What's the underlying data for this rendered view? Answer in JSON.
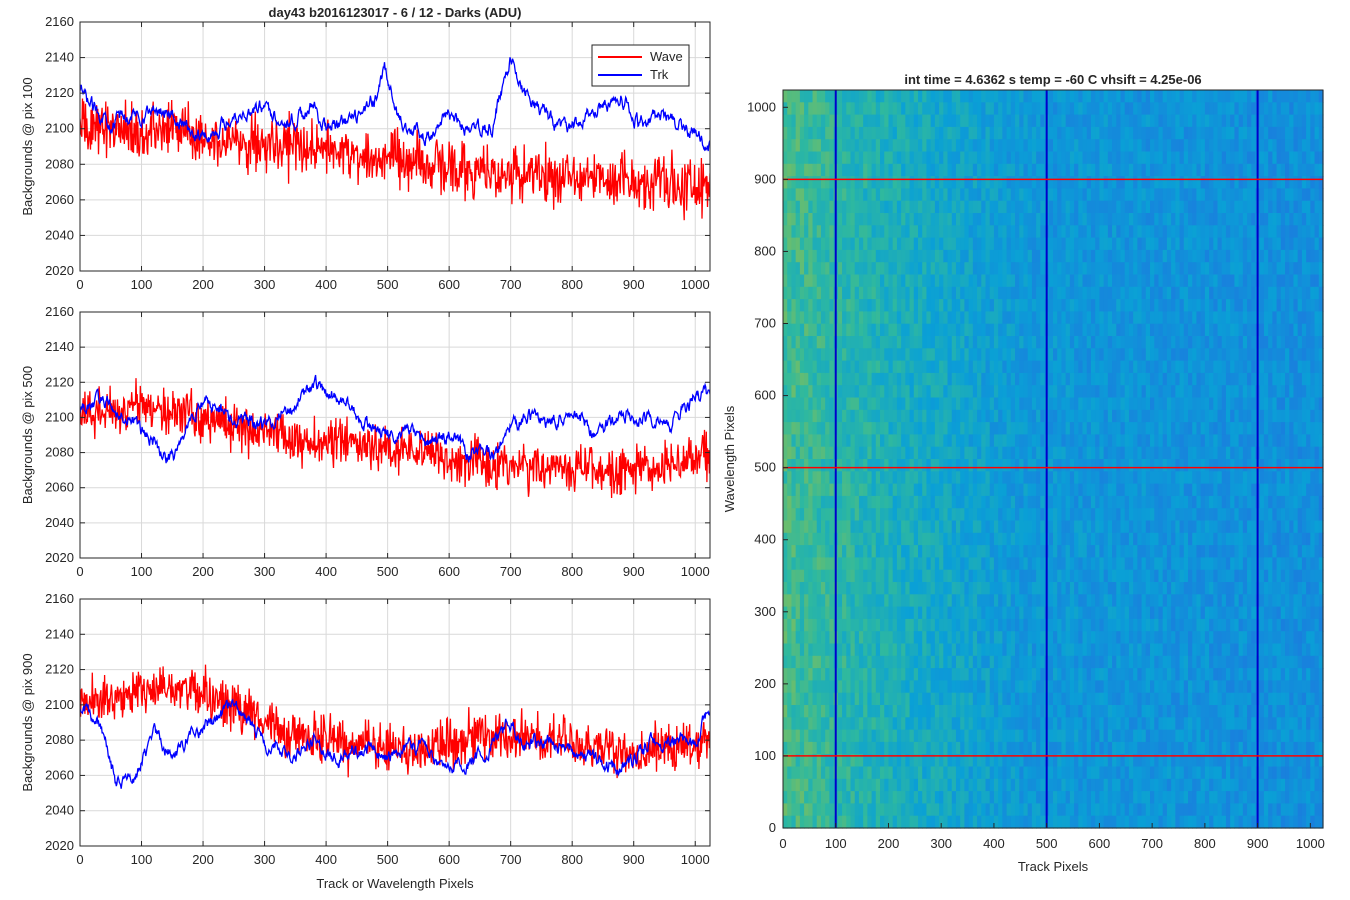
{
  "figure": {
    "suptitle": "day43 b2016123017 - 6 / 12 - Darks (ADU)",
    "colors": {
      "wave": "#ff0000",
      "trk": "#0000ff",
      "axis": "#262626",
      "grid": "#d9d9d9",
      "marker_h": "#ff0000",
      "marker_v": "#0000cc"
    }
  },
  "chart_data": [
    {
      "type": "line",
      "panel": "top-left",
      "title": "day43 b2016123017 - 6 / 12 - Darks (ADU)",
      "xlabel": "",
      "ylabel": "Backgrounds @ pix 100",
      "xlim": [
        0,
        1024
      ],
      "ylim": [
        2020,
        2160
      ],
      "xticks": [
        0,
        100,
        200,
        300,
        400,
        500,
        600,
        700,
        800,
        900,
        1000
      ],
      "yticks": [
        2020,
        2040,
        2060,
        2080,
        2100,
        2120,
        2140,
        2160
      ],
      "grid": true,
      "legend": "top-right",
      "series": [
        {
          "name": "Wave",
          "color": "#ff0000",
          "noise": 17,
          "x": [
            0,
            50,
            100,
            150,
            200,
            250,
            300,
            350,
            400,
            450,
            500,
            550,
            600,
            650,
            700,
            750,
            800,
            850,
            900,
            950,
            1024
          ],
          "y": [
            2100,
            2102,
            2098,
            2100,
            2096,
            2094,
            2092,
            2090,
            2088,
            2086,
            2082,
            2080,
            2078,
            2076,
            2075,
            2074,
            2073,
            2073,
            2072,
            2070,
            2068
          ]
        },
        {
          "name": "Trk",
          "color": "#0000ff",
          "noise": 6,
          "x": [
            0,
            20,
            50,
            100,
            140,
            180,
            210,
            250,
            300,
            340,
            380,
            400,
            450,
            480,
            495,
            515,
            540,
            560,
            600,
            640,
            670,
            700,
            720,
            750,
            790,
            840,
            880,
            910,
            940,
            980,
            1024
          ],
          "y": [
            2120,
            2112,
            2105,
            2108,
            2112,
            2098,
            2096,
            2108,
            2112,
            2104,
            2112,
            2100,
            2105,
            2118,
            2133,
            2108,
            2100,
            2095,
            2106,
            2098,
            2100,
            2140,
            2122,
            2110,
            2098,
            2112,
            2118,
            2102,
            2108,
            2100,
            2090
          ]
        }
      ]
    },
    {
      "type": "line",
      "panel": "middle-left",
      "xlabel": "",
      "ylabel": "Backgrounds @ pix 500",
      "xlim": [
        0,
        1024
      ],
      "ylim": [
        2020,
        2160
      ],
      "xticks": [
        0,
        100,
        200,
        300,
        400,
        500,
        600,
        700,
        800,
        900,
        1000
      ],
      "yticks": [
        2020,
        2040,
        2060,
        2080,
        2100,
        2120,
        2140,
        2160
      ],
      "grid": true,
      "series": [
        {
          "name": "Wave",
          "color": "#ff0000",
          "noise": 15,
          "x": [
            0,
            50,
            100,
            150,
            200,
            250,
            300,
            350,
            400,
            450,
            500,
            550,
            600,
            650,
            700,
            750,
            800,
            850,
            900,
            950,
            1024
          ],
          "y": [
            2100,
            2104,
            2106,
            2104,
            2100,
            2096,
            2092,
            2088,
            2086,
            2084,
            2082,
            2080,
            2076,
            2074,
            2073,
            2072,
            2072,
            2071,
            2070,
            2072,
            2080
          ]
        },
        {
          "name": "Trk",
          "color": "#0000ff",
          "noise": 6,
          "x": [
            0,
            40,
            80,
            120,
            150,
            180,
            210,
            250,
            300,
            340,
            380,
            420,
            460,
            500,
            540,
            570,
            600,
            640,
            680,
            700,
            730,
            760,
            800,
            840,
            880,
            920,
            960,
            1000,
            1024
          ],
          "y": [
            2105,
            2110,
            2100,
            2085,
            2075,
            2100,
            2108,
            2100,
            2096,
            2105,
            2118,
            2110,
            2098,
            2090,
            2092,
            2086,
            2090,
            2078,
            2080,
            2096,
            2100,
            2098,
            2104,
            2090,
            2102,
            2100,
            2096,
            2112,
            2114
          ]
        }
      ]
    },
    {
      "type": "line",
      "panel": "bottom-left",
      "xlabel": "Track or Wavelength Pixels",
      "ylabel": "Backgrounds @ pix 900",
      "xlim": [
        0,
        1024
      ],
      "ylim": [
        2020,
        2160
      ],
      "xticks": [
        0,
        100,
        200,
        300,
        400,
        500,
        600,
        700,
        800,
        900,
        1000
      ],
      "yticks": [
        2020,
        2040,
        2060,
        2080,
        2100,
        2120,
        2140,
        2160
      ],
      "grid": true,
      "series": [
        {
          "name": "Wave",
          "color": "#ff0000",
          "noise": 15,
          "x": [
            0,
            50,
            100,
            150,
            200,
            250,
            300,
            350,
            400,
            450,
            500,
            550,
            600,
            650,
            700,
            750,
            800,
            850,
            900,
            950,
            1024
          ],
          "y": [
            2100,
            2104,
            2108,
            2110,
            2106,
            2098,
            2090,
            2084,
            2080,
            2078,
            2076,
            2075,
            2078,
            2082,
            2082,
            2080,
            2078,
            2076,
            2074,
            2076,
            2080
          ]
        },
        {
          "name": "Trk",
          "color": "#0000ff",
          "noise": 6,
          "x": [
            0,
            30,
            60,
            90,
            120,
            150,
            180,
            220,
            260,
            300,
            340,
            380,
            420,
            460,
            500,
            540,
            580,
            620,
            660,
            700,
            720,
            760,
            800,
            840,
            880,
            920,
            960,
            1000,
            1024
          ],
          "y": [
            2098,
            2090,
            2055,
            2060,
            2085,
            2070,
            2085,
            2090,
            2100,
            2078,
            2072,
            2078,
            2070,
            2075,
            2070,
            2078,
            2070,
            2062,
            2075,
            2090,
            2080,
            2078,
            2075,
            2068,
            2062,
            2075,
            2082,
            2078,
            2098
          ]
        }
      ]
    },
    {
      "type": "heatmap",
      "panel": "right",
      "title": "int time = 4.6362 s    temp = -60 C    vhsift = 4.25e-06",
      "xlabel": "Track Pixels",
      "ylabel": "Wavelength Pixels",
      "xlim": [
        0,
        1024
      ],
      "ylim": [
        0,
        1024
      ],
      "xticks": [
        0,
        100,
        200,
        300,
        400,
        500,
        600,
        700,
        800,
        900,
        1000
      ],
      "yticks": [
        0,
        100,
        200,
        300,
        400,
        500,
        600,
        700,
        800,
        900,
        1000
      ],
      "colormap": "parula",
      "horizontal_markers": [
        100,
        500,
        900
      ],
      "vertical_markers": [
        100,
        500,
        900
      ]
    }
  ]
}
